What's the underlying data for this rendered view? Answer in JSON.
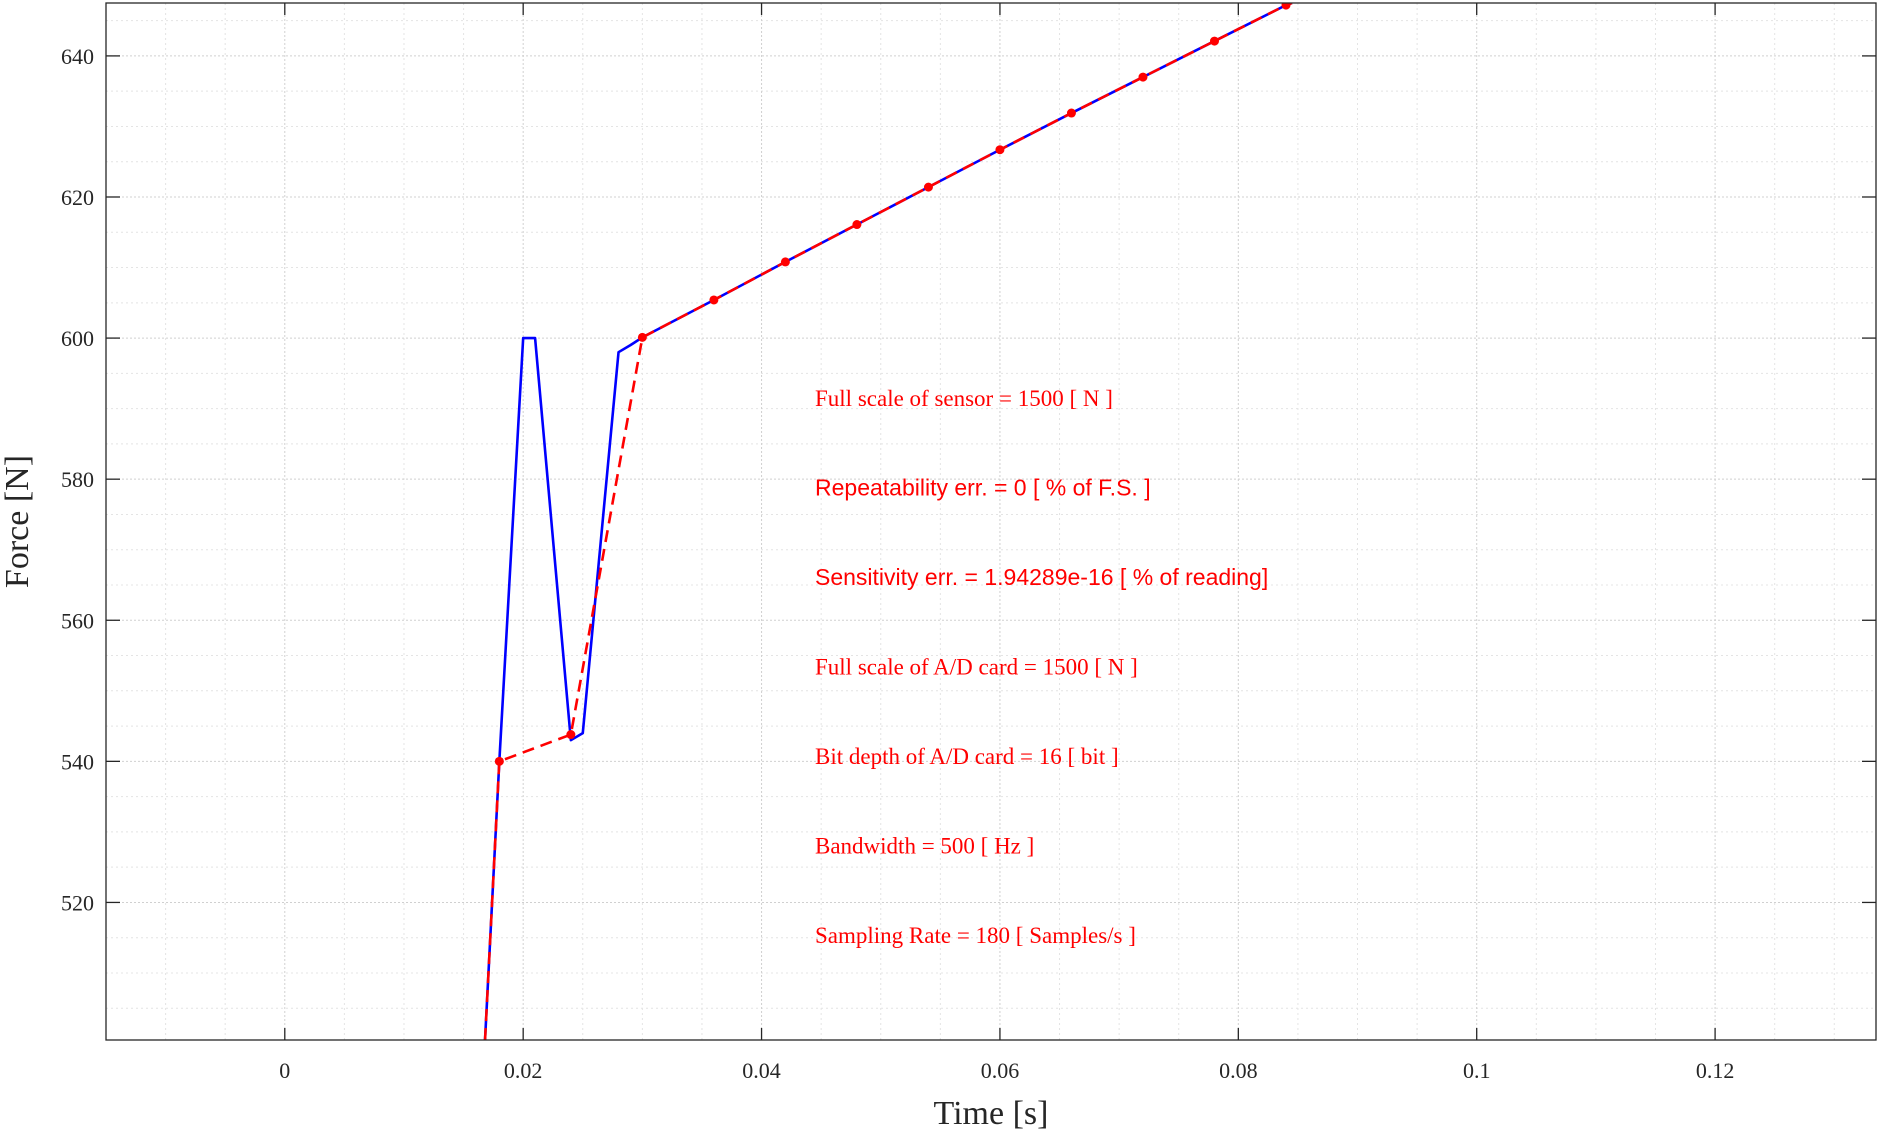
{
  "chart_data": {
    "type": "line",
    "xlabel": "Time [s]",
    "ylabel": "Force [N]",
    "xlim": [
      -0.015,
      0.1335
    ],
    "ylim": [
      500.5,
      647.5
    ],
    "xticks": [
      0,
      0.02,
      0.04,
      0.06,
      0.08,
      0.1,
      0.12
    ],
    "xtick_labels": [
      "0",
      "0.02",
      "0.04",
      "0.06",
      "0.08",
      "0.1",
      "0.12"
    ],
    "yticks": [
      520,
      540,
      560,
      580,
      600,
      620,
      640
    ],
    "ytick_labels": [
      "520",
      "540",
      "560",
      "580",
      "600",
      "620",
      "640"
    ],
    "grid": true,
    "minor_grid": true,
    "series": [
      {
        "style": "solid",
        "color": "#0000ff",
        "x": [
          0.0168,
          0.018,
          0.02,
          0.021,
          0.024,
          0.025,
          0.028,
          0.029,
          0.03,
          0.036,
          0.042,
          0.048,
          0.054,
          0.06,
          0.066,
          0.072,
          0.078,
          0.084,
          0.0845
        ],
        "y": [
          500.5,
          540,
          600,
          600,
          543,
          544,
          598,
          599,
          600.1,
          605.4,
          610.8,
          616.1,
          621.4,
          626.7,
          631.9,
          637,
          642.1,
          647.2,
          647.5
        ]
      },
      {
        "style": "dashed",
        "color": "#ff0000",
        "marker": "dot",
        "x": [
          0.0168,
          0.018,
          0.024,
          0.03,
          0.036,
          0.042,
          0.048,
          0.054,
          0.06,
          0.066,
          0.072,
          0.078,
          0.084,
          0.0845
        ],
        "y": [
          500.5,
          540,
          543.8,
          600.1,
          605.4,
          610.8,
          616.1,
          621.4,
          626.7,
          631.9,
          637,
          642.1,
          647.2,
          647.5
        ],
        "marker_x": [
          0.018,
          0.024,
          0.03,
          0.036,
          0.042,
          0.048,
          0.054,
          0.06,
          0.066,
          0.072,
          0.078,
          0.084
        ],
        "marker_y": [
          540,
          543.8,
          600.1,
          605.4,
          610.8,
          616.1,
          621.4,
          626.7,
          631.9,
          637,
          642.1,
          647.2
        ]
      }
    ],
    "annotations": [
      {
        "text": "Full scale of sensor = 1500 [ N ]",
        "font": "serif"
      },
      {
        "text": "Repeatability err. = 0 [ % of F.S. ]",
        "font": "sans"
      },
      {
        "text": "Sensitivity err. = 1.94289e-16 [ % of reading]",
        "font": "sans"
      },
      {
        "text": "Full scale of A/D card = 1500 [ N ]",
        "font": "serif"
      },
      {
        "text": "Bit depth of A/D card = 16 [ bit ]",
        "font": "serif"
      },
      {
        "text": "Bandwidth = 500 [ Hz ]",
        "font": "serif"
      },
      {
        "text": "Sampling Rate = 180 [ Samples/s ]",
        "font": "serif"
      }
    ],
    "annotation_color": "#ff0000"
  }
}
